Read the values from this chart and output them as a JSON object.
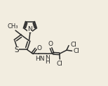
{
  "background_color": "#f2ede0",
  "line_color": "#2a2a2a",
  "line_width": 1.1,
  "font_size": 6.5,
  "fig_width": 1.54,
  "fig_height": 1.22,
  "dpi": 100,
  "xlim": [
    0,
    15
  ],
  "ylim": [
    0,
    11
  ]
}
